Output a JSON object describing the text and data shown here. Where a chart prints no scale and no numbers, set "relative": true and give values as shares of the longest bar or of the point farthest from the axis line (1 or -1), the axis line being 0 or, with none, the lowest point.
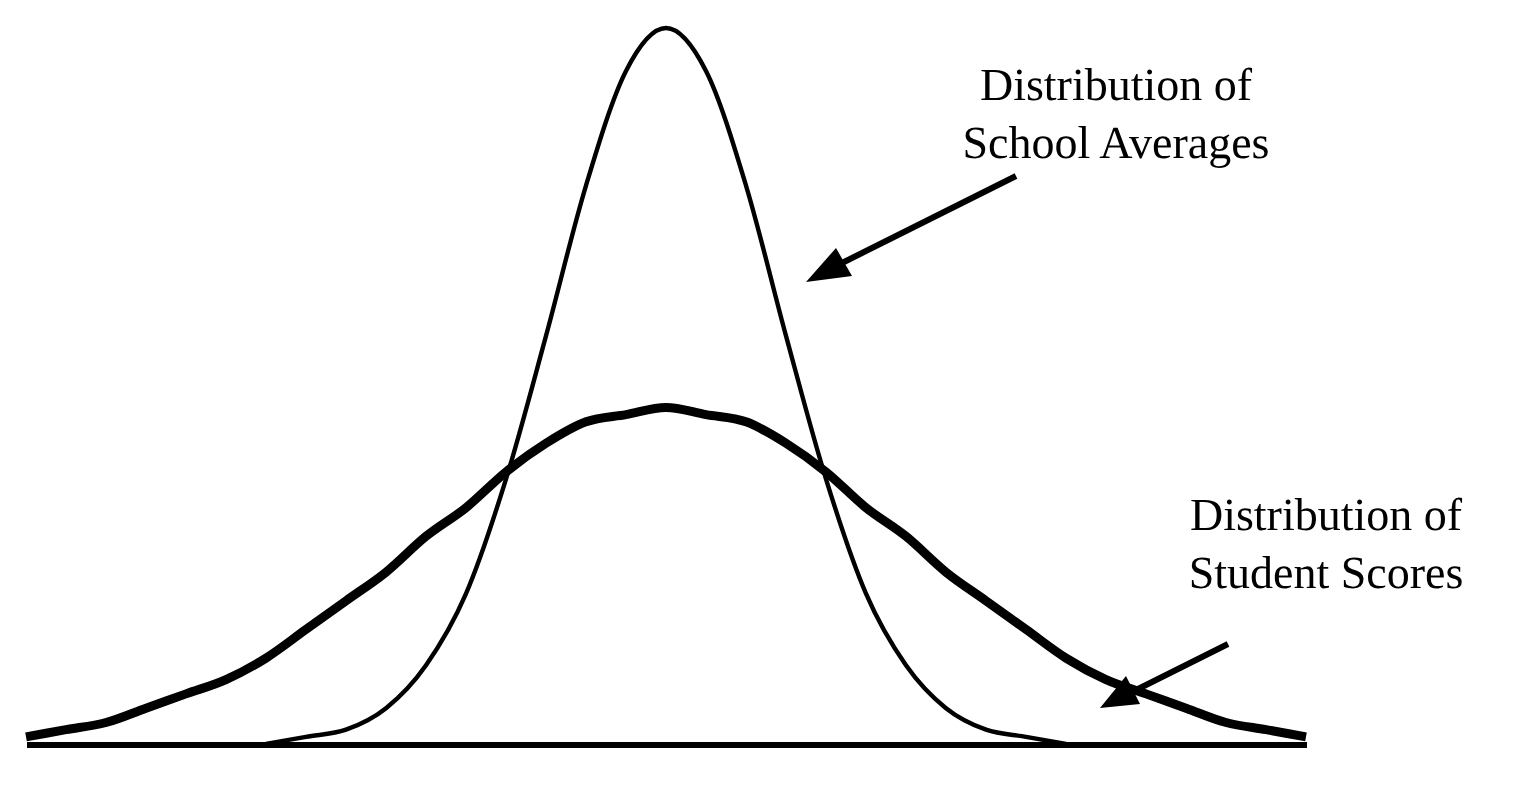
{
  "chart_data": {
    "type": "line",
    "relative": true,
    "categories": [
      null,
      null,
      null,
      null,
      null,
      null,
      null,
      null,
      null,
      null,
      null,
      null,
      null,
      null,
      null,
      null,
      null,
      null,
      null,
      null,
      null,
      null,
      null,
      null,
      null,
      null,
      null,
      null,
      null,
      null,
      null,
      null,
      null
    ],
    "series": [
      {
        "color": "#000000",
        "values": [
          null,
          null,
          null,
          null,
          null,
          null,
          0,
          0.01,
          0.02,
          0.05,
          0.11,
          0.21,
          0.37,
          0.57,
          0.78,
          0.94,
          1,
          0.94,
          0.78,
          0.57,
          0.37,
          0.21,
          0.11,
          0.05,
          0.02,
          0.01,
          0,
          null,
          null,
          null,
          null,
          null,
          null
        ]
      },
      {
        "color": "#000000",
        "values": [
          0.01,
          0.02,
          0.03,
          0.05,
          0.07,
          0.09,
          0.12,
          0.16,
          0.2,
          0.24,
          0.29,
          0.33,
          0.38,
          0.42,
          0.45,
          0.46,
          0.47,
          0.46,
          0.45,
          0.42,
          0.38,
          0.33,
          0.29,
          0.24,
          0.2,
          0.16,
          0.12,
          0.09,
          0.07,
          0.05,
          0.03,
          0.02,
          0.01
        ]
      }
    ],
    "annotations": [
      "Distribution of\nSchool Averages",
      "Distribution of\nStudent Scores"
    ]
  }
}
